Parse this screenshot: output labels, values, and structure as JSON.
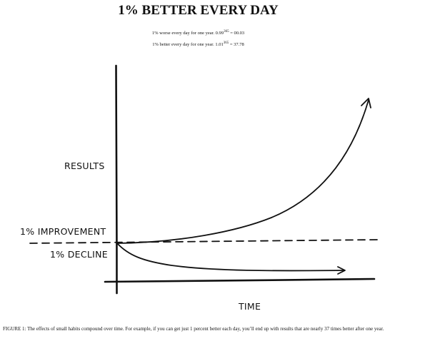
{
  "title": "1% BETTER EVERY DAY",
  "formulas": [
    {
      "prefix": "1% worse every day for one year. 0.99",
      "exponent": "365",
      "suffix": " = 00.03"
    },
    {
      "prefix": "1% better every day for one year. 1.01",
      "exponent": "365",
      "suffix": " = 37.78"
    }
  ],
  "diagram": {
    "y_axis_label": "RESULTS",
    "x_axis_label": "TIME",
    "improvement_label": "1% IMPROVEMENT",
    "decline_label": "1% DECLINE"
  },
  "caption": "FIGURE 1: The effects of small habits compound over time. For example, if you can get just 1 percent better each day, you’ll end up with results that are nearly 37 times better after one year."
}
